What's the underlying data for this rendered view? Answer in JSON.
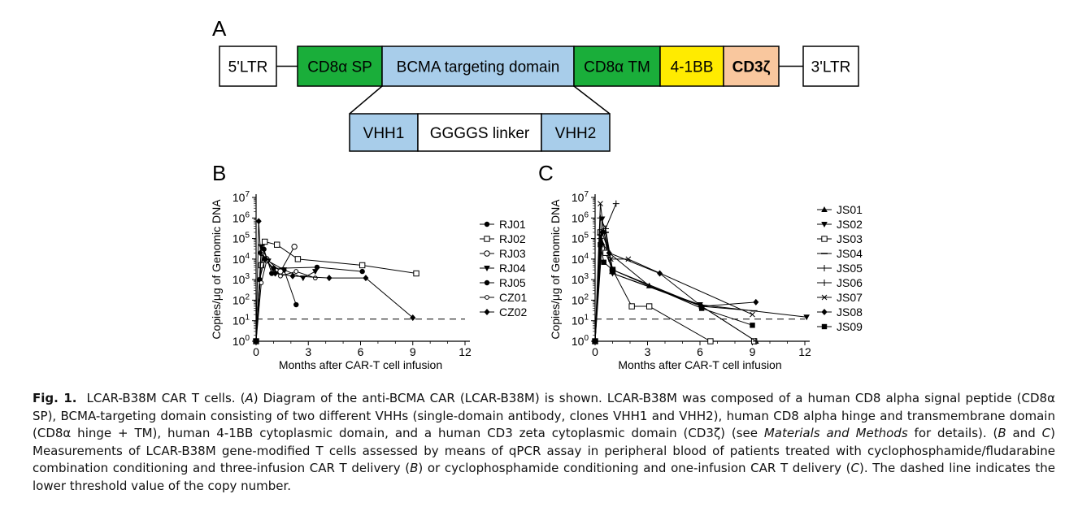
{
  "panel_labels": {
    "a": "A",
    "b": "B",
    "c": "C"
  },
  "construct": {
    "main_boxes": [
      {
        "label": "5'LTR",
        "color": "#ffffff"
      },
      {
        "label": "CD8α SP",
        "color": "#1aae3a"
      },
      {
        "label": "BCMA targeting domain",
        "color": "#a8cdea"
      },
      {
        "label": "CD8α TM",
        "color": "#1aae3a"
      },
      {
        "label": "4-1BB",
        "color": "#ffeb00"
      },
      {
        "label": "CD3ζ",
        "color": "#f9c79e"
      },
      {
        "label": "3'LTR",
        "color": "#ffffff"
      }
    ],
    "sub_boxes": [
      {
        "label": "VHH1",
        "color": "#a8cdea"
      },
      {
        "label": "GGGGS linker",
        "color": "#ffffff"
      },
      {
        "label": "VHH2",
        "color": "#a8cdea"
      }
    ]
  },
  "chart_data": [
    {
      "panel": "B",
      "type": "line",
      "yscale": "log",
      "ylabel": "Copies/μg of Genomic DNA",
      "xlabel": "Months after CAR-T cell infusion",
      "xlim": [
        0,
        12
      ],
      "xticks": [
        0,
        3,
        6,
        9,
        12
      ],
      "ylim": [
        1,
        10000000
      ],
      "yticks_exp": [
        0,
        1,
        2,
        3,
        4,
        5,
        6,
        7
      ],
      "threshold": 12,
      "series": [
        {
          "name": "RJ01",
          "marker": "dot",
          "x": [
            0,
            0.2,
            0.45,
            0.9,
            1.6,
            2.3
          ],
          "y": [
            1,
            1000,
            30000,
            2000,
            3000,
            60
          ]
        },
        {
          "name": "RJ02",
          "marker": "square",
          "x": [
            0,
            0.3,
            0.5,
            1.2,
            2.4,
            6.1,
            9.2
          ],
          "y": [
            1,
            5000,
            70000,
            50000,
            10000,
            5000,
            2000
          ]
        },
        {
          "name": "RJ03",
          "marker": "circle",
          "x": [
            0,
            0.3,
            0.6,
            1.4,
            2.2
          ],
          "y": [
            1,
            20000,
            10000,
            2500,
            40000
          ]
        },
        {
          "name": "RJ04",
          "marker": "triangle-down",
          "x": [
            0,
            0.3,
            0.7,
            1.6,
            2.7,
            3.4
          ],
          "y": [
            1,
            40000,
            8000,
            3000,
            1200,
            2500
          ]
        },
        {
          "name": "RJ05",
          "marker": "circle-filled",
          "x": [
            0,
            0.2,
            0.5,
            1.0,
            3.5,
            6.1
          ],
          "y": [
            1,
            1000,
            10000,
            3500,
            4000,
            2500
          ]
        },
        {
          "name": "CZ01",
          "marker": "circle-small",
          "x": [
            0,
            0.3,
            0.6,
            1.4,
            2.3,
            3.4
          ],
          "y": [
            1,
            700,
            8000,
            1500,
            2500,
            1200
          ]
        },
        {
          "name": "CZ02",
          "marker": "diamond",
          "x": [
            0,
            0.15,
            0.25,
            0.55,
            1.1,
            2.1,
            4.2,
            6.3,
            9.0
          ],
          "y": [
            1,
            700000,
            20000,
            10000,
            2000,
            1500,
            1200,
            1200,
            14
          ]
        }
      ]
    },
    {
      "panel": "C",
      "type": "line",
      "yscale": "log",
      "ylabel": "Copies/μg of Genomic DNA",
      "xlabel": "Months after CAR-T cell infusion",
      "xlim": [
        0,
        12
      ],
      "xticks": [
        0,
        3,
        6,
        9,
        12
      ],
      "ylim": [
        1,
        10000000
      ],
      "yticks_exp": [
        0,
        1,
        2,
        3,
        4,
        5,
        6,
        7
      ],
      "threshold": 12,
      "series": [
        {
          "name": "JS01",
          "marker": "triangle",
          "x": [
            0,
            0.4,
            0.8,
            3.1,
            6.1,
            9.2
          ],
          "y": [
            1,
            60000,
            20000,
            500,
            50,
            1
          ]
        },
        {
          "name": "JS02",
          "marker": "triangle-down",
          "x": [
            0,
            0.4,
            0.7,
            1.0,
            6.0,
            12.1
          ],
          "y": [
            1,
            900000,
            20000,
            2000,
            60,
            15
          ]
        },
        {
          "name": "JS03",
          "marker": "square",
          "x": [
            0,
            0.3,
            0.6,
            1.0,
            2.1,
            3.1,
            6.6,
            9.1
          ],
          "y": [
            1,
            200000,
            20000,
            3000,
            50,
            50,
            1,
            1
          ]
        },
        {
          "name": "JS04",
          "marker": "dash",
          "x": [
            0,
            0.3,
            0.6,
            1.0,
            6.1,
            9.1
          ],
          "y": [
            1,
            150000,
            200000,
            2000,
            50,
            30
          ]
        },
        {
          "name": "JS05",
          "marker": "plus",
          "x": [
            0,
            0.3,
            0.6,
            1.0,
            6.1,
            9.2
          ],
          "y": [
            1,
            100000,
            300000,
            3000,
            50,
            1
          ]
        },
        {
          "name": "JS06",
          "marker": "plus",
          "x": [
            0,
            0.3,
            0.6,
            1.2
          ],
          "y": [
            1,
            1000000,
            300000,
            5000000
          ]
        },
        {
          "name": "JS07",
          "marker": "x",
          "x": [
            0,
            0.3,
            0.5,
            0.9,
            1.9,
            9.0
          ],
          "y": [
            1,
            5000000,
            200000,
            10000,
            10000,
            20
          ]
        },
        {
          "name": "JS08",
          "marker": "diamond",
          "x": [
            0,
            0.4,
            0.8,
            3.7,
            6.1,
            9.2
          ],
          "y": [
            1,
            200000,
            20000,
            2000,
            50,
            80
          ]
        },
        {
          "name": "JS09",
          "marker": "square-filled",
          "x": [
            0,
            0.3,
            0.5,
            1.0,
            6.1,
            9.0
          ],
          "y": [
            1,
            50000,
            7000,
            3000,
            40,
            6
          ]
        }
      ]
    }
  ],
  "caption": {
    "label": "Fig. 1.",
    "segments": [
      {
        "t": "LCAR-B38M CAR T cells. (",
        "i": false
      },
      {
        "t": "A",
        "i": true
      },
      {
        "t": ") Diagram of the anti-BCMA CAR (LCAR-B38M) is shown. LCAR-B38M was composed of a human CD8 alpha signal peptide (CD8α SP), BCMA-targeting domain consisting of two different VHHs (single-domain antibody, clones VHH1 and VHH2), human CD8 alpha hinge and transmembrane domain (CD8α hinge + TM), human 4-1BB cytoplasmic domain, and a human CD3 zeta cytoplasmic domain (CD3ζ) (see ",
        "i": false
      },
      {
        "t": "Materials and Methods",
        "i": true
      },
      {
        "t": " for details). (",
        "i": false
      },
      {
        "t": "B",
        "i": true
      },
      {
        "t": " and ",
        "i": false
      },
      {
        "t": "C",
        "i": true
      },
      {
        "t": ") Measurements of LCAR-B38M gene-modified T cells assessed by means of qPCR assay in peripheral blood of patients treated with cyclophosphamide/fludarabine combination conditioning and three-infusion CAR T delivery (",
        "i": false
      },
      {
        "t": "B",
        "i": true
      },
      {
        "t": ") or cyclophosphamide conditioning and one-infusion CAR T delivery (",
        "i": false
      },
      {
        "t": "C",
        "i": true
      },
      {
        "t": "). The dashed line indicates the lower threshold value of the copy number.",
        "i": false
      }
    ]
  }
}
